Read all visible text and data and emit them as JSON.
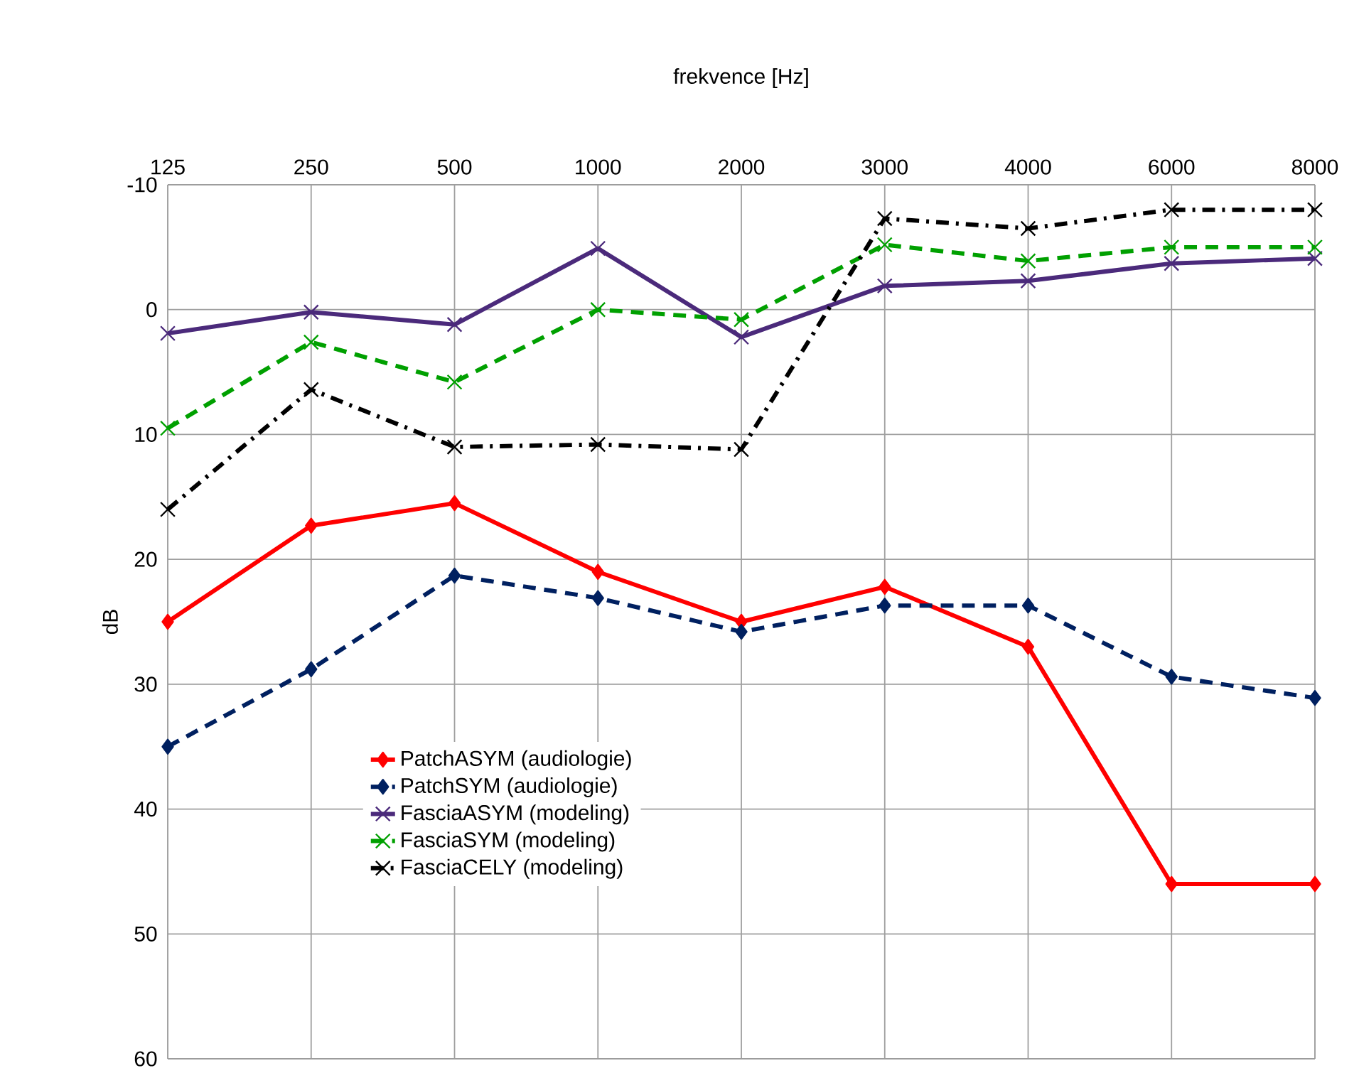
{
  "chart_data": {
    "type": "line",
    "xlabel": "frekvence [Hz]",
    "ylabel": "dB",
    "categories": [
      "125",
      "250",
      "500",
      "1000",
      "2000",
      "3000",
      "4000",
      "6000",
      "8000"
    ],
    "ylim": [
      60,
      -10
    ],
    "yticks": [
      -10,
      0,
      10,
      20,
      30,
      40,
      50,
      60
    ],
    "grid": true,
    "legend": "bottom",
    "series": [
      {
        "name": "PatchASYM (audiologie)",
        "color": "#ff0000",
        "line_style": "solid",
        "marker": "diamond",
        "values": [
          25,
          17.3,
          15.5,
          21,
          25,
          22.2,
          27,
          46,
          46
        ]
      },
      {
        "name": "PatchSYM (audiologie)",
        "color": "#002060",
        "line_style": "dashed",
        "marker": "diamond",
        "values": [
          35,
          28.8,
          21.3,
          23.1,
          25.8,
          23.7,
          23.7,
          29.4,
          31.1
        ]
      },
      {
        "name": "FasciaASYM (modeling)",
        "color": "#4b2a7b",
        "line_style": "solid",
        "marker": "cross",
        "values": [
          1.9,
          0.2,
          1.2,
          -4.9,
          2.2,
          -1.9,
          -2.3,
          -3.7,
          -4.1
        ]
      },
      {
        "name": "FasciaSYM (modeling)",
        "color": "#00a000",
        "line_style": "dashed",
        "marker": "cross",
        "values": [
          9.5,
          2.6,
          5.8,
          0,
          0.8,
          -5.2,
          -3.9,
          -5,
          -5
        ]
      },
      {
        "name": "FasciaCELY (modeling)",
        "color": "#000000",
        "line_style": "dashdot",
        "marker": "cross",
        "values": [
          16,
          6.4,
          11,
          10.8,
          11.2,
          -7.3,
          -6.5,
          -8,
          -8
        ]
      }
    ]
  }
}
